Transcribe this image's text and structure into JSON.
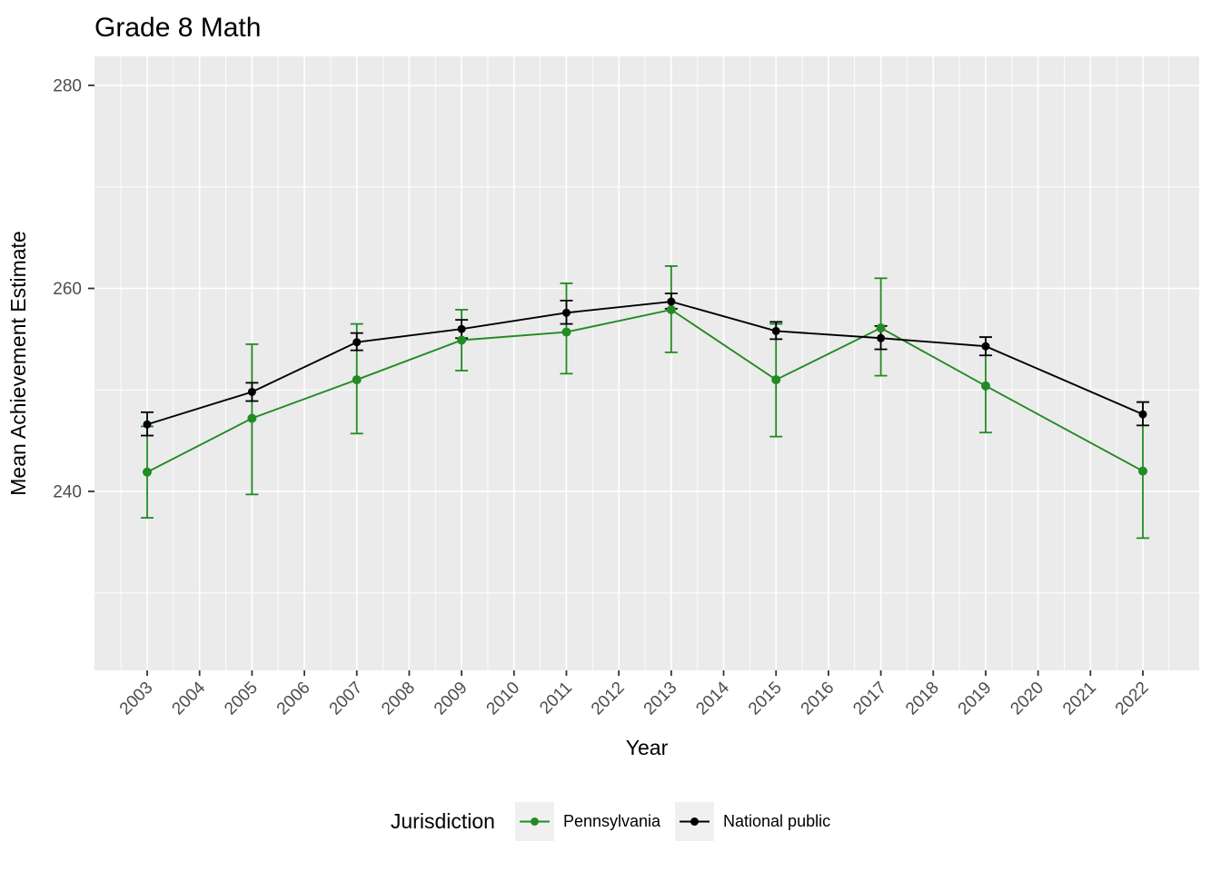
{
  "chart_data": {
    "type": "line",
    "title": "Grade 8 Math",
    "xlabel": "Year",
    "ylabel": "Mean Achievement Estimate",
    "x_categories": [
      "2003",
      "2004",
      "2005",
      "2006",
      "2007",
      "2008",
      "2009",
      "2010",
      "2011",
      "2012",
      "2013",
      "2014",
      "2015",
      "2016",
      "2017",
      "2018",
      "2019",
      "2020",
      "2021",
      "2022"
    ],
    "y_ticks": [
      240,
      260,
      280
    ],
    "y_minor_ticks": [
      230,
      250,
      270
    ],
    "ylim": [
      222.4,
      282.9
    ],
    "grid": "major and minor white gridlines on gray panel",
    "legend": {
      "title": "Jurisdiction",
      "position": "bottom"
    },
    "series": [
      {
        "name": "Pennsylvania",
        "color": "#228B22",
        "point_radius": 5,
        "years": [
          2003,
          2005,
          2007,
          2009,
          2011,
          2013,
          2015,
          2017,
          2019,
          2022
        ],
        "values": [
          241.9,
          247.2,
          251.0,
          254.9,
          255.7,
          257.9,
          251.0,
          256.1,
          250.4,
          242.0
        ],
        "ci_low": [
          237.4,
          239.7,
          245.7,
          251.9,
          251.6,
          253.7,
          245.4,
          251.4,
          245.8,
          235.4
        ],
        "ci_high": [
          246.4,
          254.5,
          256.5,
          257.9,
          260.5,
          262.2,
          256.5,
          261.0,
          255.2,
          248.8
        ]
      },
      {
        "name": "National public",
        "color": "#000000",
        "point_radius": 4.5,
        "years": [
          2003,
          2005,
          2007,
          2009,
          2011,
          2013,
          2015,
          2017,
          2019,
          2022
        ],
        "values": [
          246.6,
          249.8,
          254.7,
          256.0,
          257.6,
          258.7,
          255.8,
          255.1,
          254.3,
          247.6
        ],
        "ci_low": [
          245.5,
          248.9,
          253.9,
          255.1,
          256.5,
          258.0,
          255.0,
          254.0,
          253.4,
          246.5
        ],
        "ci_high": [
          247.8,
          250.7,
          255.6,
          256.9,
          258.8,
          259.5,
          256.7,
          256.3,
          255.2,
          248.8
        ]
      }
    ],
    "styles": {
      "panel_bg": "#EBEBEB",
      "grid_color": "#FFFFFF",
      "tick_mark_color": "#333333",
      "tick_text_color": "#4D4D4D",
      "legend_key_bg": "#F0F0F0"
    }
  }
}
